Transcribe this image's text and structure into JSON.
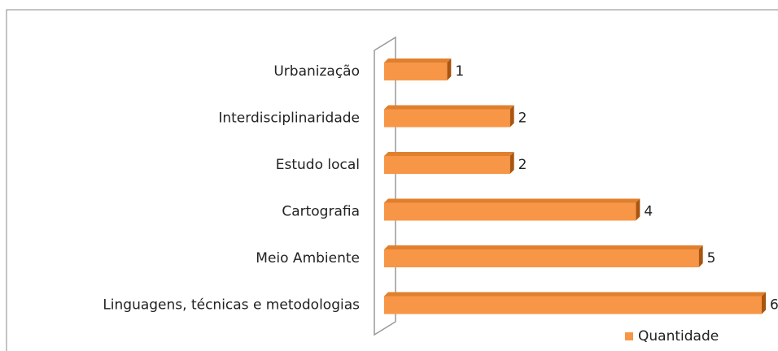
{
  "chart_data": {
    "type": "bar",
    "orientation": "horizontal",
    "categories": [
      "Urbanização",
      "Interdisciplinaridade",
      "Estudo local",
      "Cartografia",
      "Meio Ambiente",
      "Linguagens, técnicas e metodologias"
    ],
    "series": [
      {
        "name": "Quantidade",
        "color": "#f79646",
        "values": [
          1,
          2,
          2,
          4,
          5,
          6
        ]
      }
    ],
    "xlim": [
      0,
      6
    ],
    "legend": "bottom-right"
  }
}
